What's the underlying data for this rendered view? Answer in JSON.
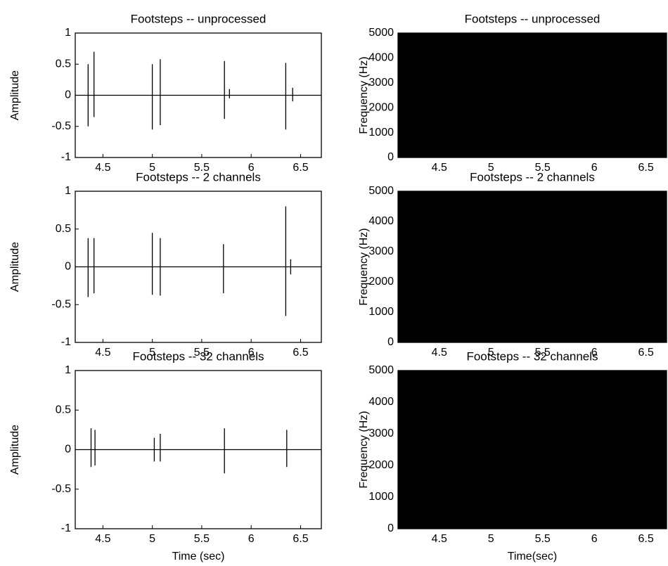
{
  "chart_data": [
    {
      "type": "line",
      "title": "Footsteps -- unprocessed",
      "ylabel": "Amplitude",
      "color": "#000000",
      "x": [
        4.22,
        4.35,
        4.35,
        4.35,
        4.35,
        4.41,
        4.41,
        4.41,
        4.41,
        5.0,
        5.0,
        5.0,
        5.0,
        5.08,
        5.08,
        5.08,
        5.08,
        5.73,
        5.73,
        5.73,
        5.73,
        5.78,
        5.78,
        5.78,
        5.78,
        6.35,
        6.35,
        6.35,
        6.35,
        6.42,
        6.42,
        6.42,
        6.42,
        6.71
      ],
      "values": [
        0,
        0,
        0.5,
        -0.5,
        0,
        0,
        0.7,
        -0.35,
        0,
        0,
        0.5,
        -0.55,
        0,
        0,
        0.58,
        -0.48,
        0,
        0,
        0.55,
        -0.38,
        0,
        0,
        0.1,
        -0.05,
        0,
        0,
        0.52,
        -0.55,
        0,
        0,
        0.12,
        -0.1,
        0,
        0
      ],
      "xlim": [
        4.22,
        6.71
      ],
      "ylim": [
        -1,
        1
      ],
      "xticks": [
        4.5,
        5,
        5.5,
        6,
        6.5
      ],
      "yticks": [
        -1,
        -0.5,
        0,
        0.5,
        1
      ]
    },
    {
      "type": "spectrogram",
      "title": "Footsteps -- unprocessed",
      "ylabel": "Frequency (Hz)",
      "color": "#000000",
      "xlim": [
        4.1,
        6.7
      ],
      "ylim": [
        0,
        5000
      ],
      "xticks": [
        4.5,
        5,
        5.5,
        6,
        6.5
      ],
      "yticks": [
        0,
        1000,
        2000,
        3000,
        4000,
        5000
      ]
    },
    {
      "type": "line",
      "title": "Footsteps -- 2 channels",
      "ylabel": "Amplitude",
      "color": "#000000",
      "x": [
        4.22,
        4.35,
        4.35,
        4.35,
        4.35,
        4.41,
        4.41,
        4.41,
        4.41,
        5.0,
        5.0,
        5.0,
        5.0,
        5.08,
        5.08,
        5.08,
        5.08,
        5.72,
        5.72,
        5.72,
        5.72,
        6.35,
        6.35,
        6.35,
        6.35,
        6.4,
        6.4,
        6.4,
        6.4,
        6.71
      ],
      "values": [
        0,
        0,
        0.38,
        -0.4,
        0,
        0,
        0.38,
        -0.35,
        0,
        0,
        0.45,
        -0.37,
        0,
        0,
        0.38,
        -0.38,
        0,
        0,
        0.3,
        -0.35,
        0,
        0,
        0.8,
        -0.65,
        0,
        0,
        0.1,
        -0.1,
        0,
        0
      ],
      "xlim": [
        4.22,
        6.71
      ],
      "ylim": [
        -1,
        1
      ],
      "xticks": [
        4.5,
        5,
        5.5,
        6,
        6.5
      ],
      "yticks": [
        -1,
        -0.5,
        0,
        0.5,
        1
      ]
    },
    {
      "type": "spectrogram",
      "title": "Footsteps -- 2 channels",
      "ylabel": "Frequency (Hz)",
      "color": "#000000",
      "xlim": [
        4.1,
        6.7
      ],
      "ylim": [
        0,
        5000
      ],
      "xticks": [
        4.5,
        5,
        5.5,
        6,
        6.5
      ],
      "yticks": [
        0,
        1000,
        2000,
        3000,
        4000,
        5000
      ]
    },
    {
      "type": "line",
      "title": "Footsteps -- 32 channels",
      "xlabel": "Time (sec)",
      "ylabel": "Amplitude",
      "color": "#000000",
      "x": [
        4.22,
        4.38,
        4.38,
        4.38,
        4.38,
        4.42,
        4.42,
        4.42,
        4.42,
        5.02,
        5.02,
        5.02,
        5.02,
        5.08,
        5.08,
        5.08,
        5.08,
        5.73,
        5.73,
        5.73,
        5.73,
        6.36,
        6.36,
        6.36,
        6.36,
        6.71
      ],
      "values": [
        0,
        0,
        0.27,
        -0.22,
        0,
        0,
        0.25,
        -0.2,
        0,
        0,
        0.15,
        -0.15,
        0,
        0,
        0.2,
        -0.15,
        0,
        0,
        0.27,
        -0.3,
        0,
        0,
        0.25,
        -0.22,
        0,
        0
      ],
      "xlim": [
        4.22,
        6.71
      ],
      "ylim": [
        -1,
        1
      ],
      "xticks": [
        4.5,
        5,
        5.5,
        6,
        6.5
      ],
      "yticks": [
        -1,
        -0.5,
        0,
        0.5,
        1
      ]
    },
    {
      "type": "spectrogram",
      "title": "Footsteps -- 32 channels",
      "xlabel": "Time(sec)",
      "ylabel": "Frequency (Hz)",
      "color": "#000000",
      "xlim": [
        4.1,
        6.7
      ],
      "ylim": [
        0,
        5000
      ],
      "xticks": [
        4.5,
        5,
        5.5,
        6,
        6.5
      ],
      "yticks": [
        0,
        1000,
        2000,
        3000,
        4000,
        5000
      ]
    }
  ]
}
